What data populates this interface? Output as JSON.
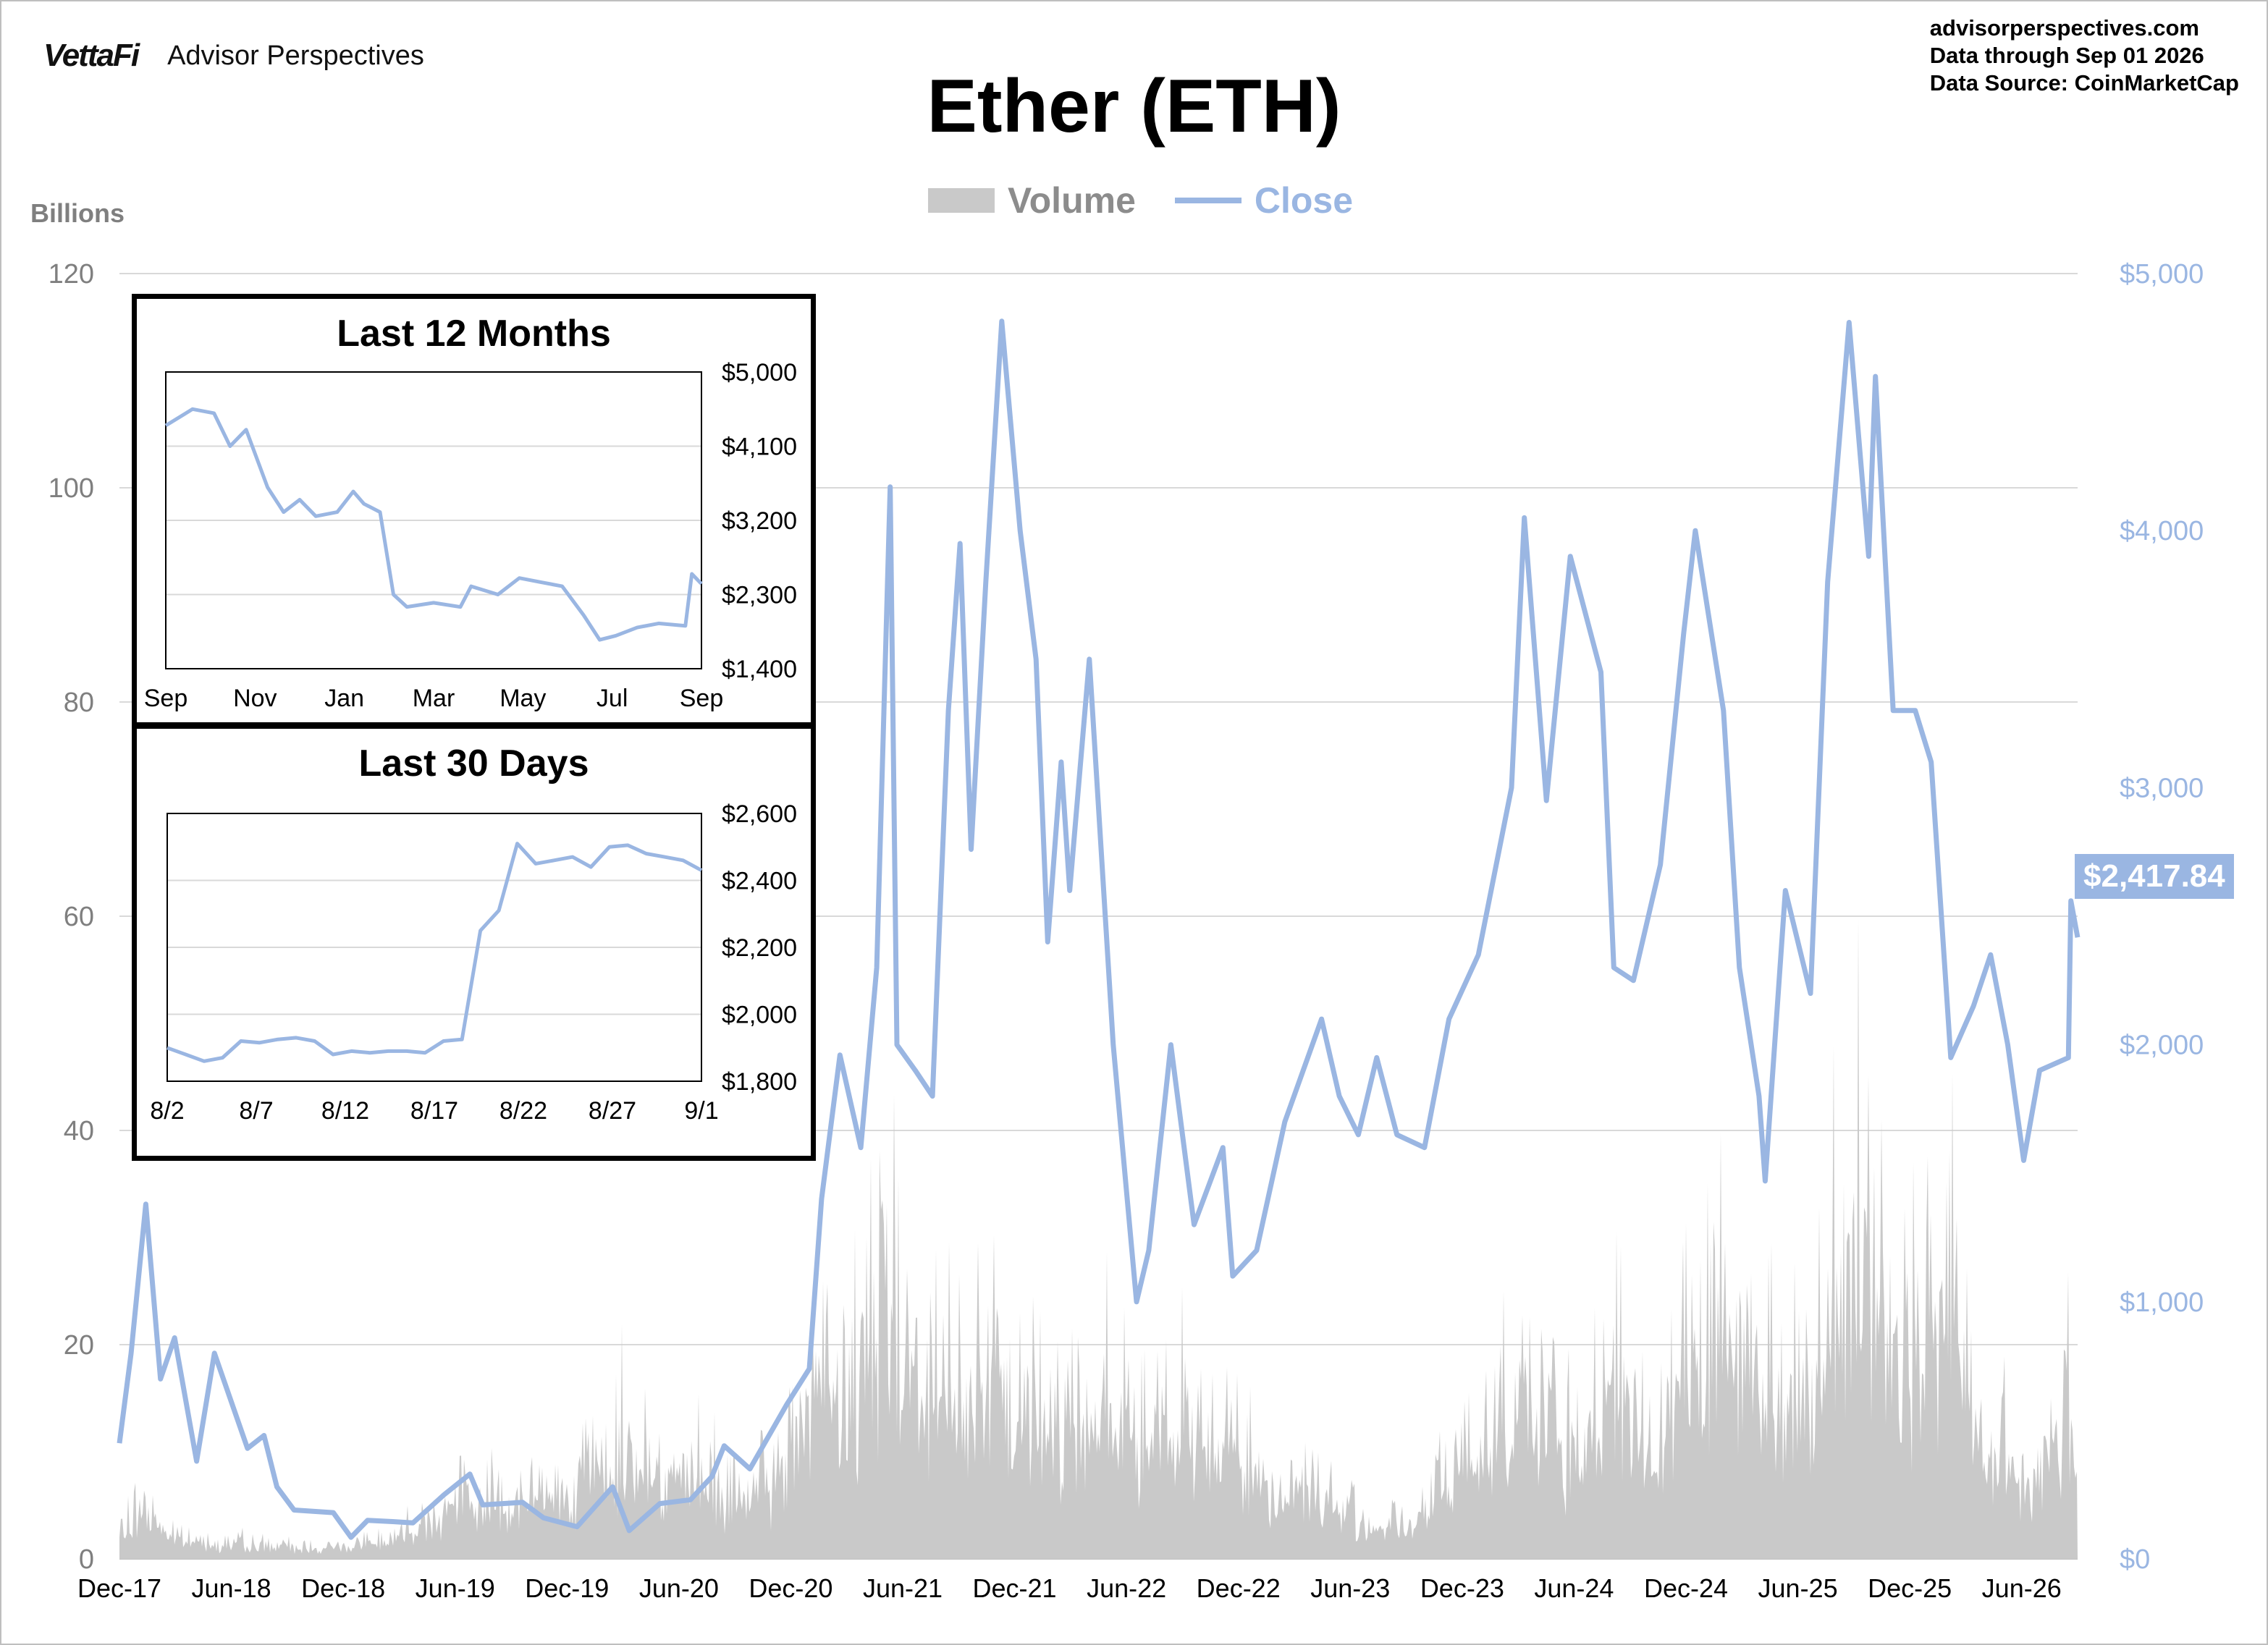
{
  "header": {
    "brand_logo": "VettaFi",
    "brand_name": "Advisor Perspectives",
    "site": "advisorperspectives.com",
    "data_through": "Data through  Sep 01 2026",
    "data_source": "Data Source:  CoinMarketCap"
  },
  "colors": {
    "volume": "#c9c9c9",
    "close": "#9ab6e2",
    "grid": "#d9d9d9",
    "axis_text": "#7f7f7f"
  },
  "last_price_label": "$2,417.84",
  "chart_data": [
    {
      "type": "area+line",
      "title": "Ether (ETH)",
      "legend": {
        "placement": "top-center",
        "entries": [
          "Volume",
          "Close"
        ]
      },
      "left_axis": {
        "units_label": "Billions",
        "ticks": [
          "0",
          "20",
          "40",
          "60",
          "80",
          "100",
          "120"
        ],
        "range": [
          0,
          120
        ]
      },
      "right_axis": {
        "ticks": [
          "$0",
          "$1,000",
          "$2,000",
          "$3,000",
          "$4,000",
          "$5,000"
        ],
        "range": [
          0,
          5000
        ]
      },
      "x_ticks": [
        "Dec-17",
        "Jun-18",
        "Dec-18",
        "Jun-19",
        "Dec-19",
        "Jun-20",
        "Dec-20",
        "Jun-21",
        "Dec-21",
        "Jun-22",
        "Dec-22",
        "Jun-23",
        "Dec-23",
        "Jun-24",
        "Dec-24",
        "Jun-25",
        "Dec-25",
        "Jun-26"
      ],
      "x_range": [
        "2017-12-01",
        "2026-09-01"
      ],
      "grid": true,
      "series": [
        {
          "name": "Close",
          "axis": "right",
          "points": [
            [
              "2017-12-01",
              450
            ],
            [
              "2017-12-20",
              800
            ],
            [
              "2018-01-13",
              1380
            ],
            [
              "2018-02-06",
              700
            ],
            [
              "2018-03-01",
              860
            ],
            [
              "2018-04-06",
              380
            ],
            [
              "2018-05-05",
              800
            ],
            [
              "2018-06-28",
              430
            ],
            [
              "2018-07-25",
              480
            ],
            [
              "2018-08-15",
              280
            ],
            [
              "2018-09-12",
              190
            ],
            [
              "2018-11-15",
              180
            ],
            [
              "2018-12-14",
              84
            ],
            [
              "2019-01-10",
              150
            ],
            [
              "2019-02-20",
              145
            ],
            [
              "2019-03-25",
              140
            ],
            [
              "2019-05-15",
              250
            ],
            [
              "2019-06-26",
              330
            ],
            [
              "2019-07-17",
              210
            ],
            [
              "2019-09-20",
              220
            ],
            [
              "2019-10-24",
              160
            ],
            [
              "2019-12-18",
              125
            ],
            [
              "2020-02-14",
              280
            ],
            [
              "2020-03-12",
              110
            ],
            [
              "2020-05-01",
              215
            ],
            [
              "2020-06-20",
              230
            ],
            [
              "2020-07-25",
              320
            ],
            [
              "2020-08-14",
              440
            ],
            [
              "2020-09-25",
              350
            ],
            [
              "2020-11-24",
              600
            ],
            [
              "2020-12-31",
              740
            ],
            [
              "2021-01-20",
              1400
            ],
            [
              "2021-02-19",
              1960
            ],
            [
              "2021-03-25",
              1600
            ],
            [
              "2021-04-20",
              2300
            ],
            [
              "2021-05-12",
              4170
            ],
            [
              "2021-05-23",
              2000
            ],
            [
              "2021-06-22",
              1900
            ],
            [
              "2021-07-20",
              1800
            ],
            [
              "2021-08-15",
              3300
            ],
            [
              "2021-09-03",
              3950
            ],
            [
              "2021-09-21",
              2760
            ],
            [
              "2021-10-15",
              3800
            ],
            [
              "2021-11-10",
              4815
            ],
            [
              "2021-12-10",
              4000
            ],
            [
              "2022-01-05",
              3500
            ],
            [
              "2022-01-24",
              2400
            ],
            [
              "2022-02-15",
              3100
            ],
            [
              "2022-03-01",
              2600
            ],
            [
              "2022-04-02",
              3500
            ],
            [
              "2022-05-11",
              2000
            ],
            [
              "2022-06-18",
              1000
            ],
            [
              "2022-07-08",
              1200
            ],
            [
              "2022-08-13",
              2000
            ],
            [
              "2022-09-20",
              1300
            ],
            [
              "2022-11-06",
              1600
            ],
            [
              "2022-11-22",
              1100
            ],
            [
              "2022-12-31",
              1200
            ],
            [
              "2023-02-15",
              1700
            ],
            [
              "2023-04-16",
              2100
            ],
            [
              "2023-05-15",
              1800
            ],
            [
              "2023-06-15",
              1650
            ],
            [
              "2023-07-15",
              1950
            ],
            [
              "2023-08-17",
              1650
            ],
            [
              "2023-10-01",
              1600
            ],
            [
              "2023-11-10",
              2100
            ],
            [
              "2023-12-28",
              2350
            ],
            [
              "2024-02-20",
              3000
            ],
            [
              "2024-03-12",
              4050
            ],
            [
              "2024-04-17",
              2950
            ],
            [
              "2024-05-26",
              3900
            ],
            [
              "2024-07-15",
              3450
            ],
            [
              "2024-08-05",
              2300
            ],
            [
              "2024-09-06",
              2250
            ],
            [
              "2024-10-20",
              2700
            ],
            [
              "2024-11-27",
              3600
            ],
            [
              "2024-12-16",
              4000
            ],
            [
              "2025-01-31",
              3300
            ],
            [
              "2025-02-26",
              2300
            ],
            [
              "2025-03-30",
              1800
            ],
            [
              "2025-04-09",
              1470
            ],
            [
              "2025-05-12",
              2600
            ],
            [
              "2025-06-22",
              2200
            ],
            [
              "2025-07-20",
              3800
            ],
            [
              "2025-08-24",
              4810
            ],
            [
              "2025-09-25",
              3900
            ],
            [
              "2025-10-06",
              4600
            ],
            [
              "2025-11-04",
              3300
            ],
            [
              "2025-12-10",
              3300
            ],
            [
              "2026-01-05",
              3100
            ],
            [
              "2026-02-06",
              1950
            ],
            [
              "2026-03-15",
              2150
            ],
            [
              "2026-04-12",
              2350
            ],
            [
              "2026-05-10",
              2000
            ],
            [
              "2026-06-05",
              1550
            ],
            [
              "2026-07-01",
              1900
            ],
            [
              "2026-08-17",
              1950
            ],
            [
              "2026-08-21",
              2560
            ],
            [
              "2026-09-01",
              2417.84
            ]
          ]
        },
        {
          "name": "Volume",
          "axis": "left",
          "points": [
            [
              "2017-12-01",
              3
            ],
            [
              "2018-01-10",
              7
            ],
            [
              "2018-03-01",
              2.5
            ],
            [
              "2018-06-01",
              2
            ],
            [
              "2018-09-01",
              1.5
            ],
            [
              "2018-12-01",
              1.5
            ],
            [
              "2019-03-01",
              3
            ],
            [
              "2019-06-15",
              8
            ],
            [
              "2019-09-01",
              7
            ],
            [
              "2019-12-01",
              9
            ],
            [
              "2020-03-01",
              14
            ],
            [
              "2020-05-01",
              12
            ],
            [
              "2020-08-15",
              8
            ],
            [
              "2020-11-01",
              9
            ],
            [
              "2021-01-15",
              25
            ],
            [
              "2021-03-01",
              18
            ],
            [
              "2021-05-15",
              38
            ],
            [
              "2021-07-01",
              20
            ],
            [
              "2021-09-01",
              22
            ],
            [
              "2021-11-01",
              22
            ],
            [
              "2022-01-15",
              18
            ],
            [
              "2022-05-15",
              20
            ],
            [
              "2022-07-01",
              15
            ],
            [
              "2022-09-15",
              16
            ],
            [
              "2022-11-10",
              18
            ],
            [
              "2023-01-15",
              8
            ],
            [
              "2023-03-15",
              10
            ],
            [
              "2023-06-15",
              5
            ],
            [
              "2023-09-15",
              4
            ],
            [
              "2023-12-01",
              13
            ],
            [
              "2024-03-10",
              23
            ],
            [
              "2024-06-01",
              12
            ],
            [
              "2024-08-05",
              24
            ],
            [
              "2024-10-01",
              14
            ],
            [
              "2024-12-10",
              30
            ],
            [
              "2025-02-10",
              28
            ],
            [
              "2025-04-10",
              24
            ],
            [
              "2025-06-15",
              20
            ],
            [
              "2025-08-15",
              45
            ],
            [
              "2025-10-10",
              33
            ],
            [
              "2025-12-01",
              28
            ],
            [
              "2026-02-05",
              35
            ],
            [
              "2026-04-01",
              14
            ],
            [
              "2026-06-15",
              10
            ],
            [
              "2026-08-21",
              22
            ],
            [
              "2026-09-01",
              12
            ]
          ]
        }
      ]
    },
    {
      "type": "line",
      "title": "Last 12 Months",
      "x_ticks": [
        "Sep",
        "Nov",
        "Jan",
        "Mar",
        "May",
        "Jul",
        "Sep"
      ],
      "y_ticks": [
        "$5,000",
        "$4,100",
        "$3,200",
        "$2,300",
        "$1,400"
      ],
      "ylim": [
        1400,
        5000
      ],
      "series": [
        {
          "name": "Close",
          "points": [
            [
              0.0,
              4350
            ],
            [
              0.05,
              4550
            ],
            [
              0.09,
              4500
            ],
            [
              0.12,
              4100
            ],
            [
              0.15,
              4300
            ],
            [
              0.19,
              3600
            ],
            [
              0.22,
              3300
            ],
            [
              0.25,
              3450
            ],
            [
              0.28,
              3250
            ],
            [
              0.32,
              3300
            ],
            [
              0.35,
              3550
            ],
            [
              0.37,
              3400
            ],
            [
              0.4,
              3300
            ],
            [
              0.425,
              2300
            ],
            [
              0.45,
              2150
            ],
            [
              0.5,
              2200
            ],
            [
              0.55,
              2150
            ],
            [
              0.57,
              2400
            ],
            [
              0.62,
              2300
            ],
            [
              0.66,
              2500
            ],
            [
              0.7,
              2450
            ],
            [
              0.74,
              2400
            ],
            [
              0.78,
              2050
            ],
            [
              0.81,
              1750
            ],
            [
              0.84,
              1800
            ],
            [
              0.88,
              1900
            ],
            [
              0.92,
              1950
            ],
            [
              0.97,
              1920
            ],
            [
              0.982,
              2550
            ],
            [
              1.0,
              2430
            ]
          ]
        }
      ]
    },
    {
      "type": "line",
      "title": "Last 30 Days",
      "categories": [
        "8/2",
        "8/7",
        "8/12",
        "8/17",
        "8/22",
        "8/27",
        "9/1"
      ],
      "y_ticks": [
        "$2,600",
        "$2,400",
        "$2,200",
        "$2,000",
        "$1,800"
      ],
      "ylim": [
        1800,
        2600
      ],
      "series": [
        {
          "name": "Close",
          "points": [
            [
              1,
              1900
            ],
            [
              2,
              1880
            ],
            [
              3,
              1860
            ],
            [
              4,
              1870
            ],
            [
              5,
              1920
            ],
            [
              6,
              1915
            ],
            [
              7,
              1925
            ],
            [
              8,
              1930
            ],
            [
              9,
              1920
            ],
            [
              10,
              1880
            ],
            [
              11,
              1890
            ],
            [
              12,
              1885
            ],
            [
              13,
              1890
            ],
            [
              14,
              1890
            ],
            [
              15,
              1885
            ],
            [
              16,
              1920
            ],
            [
              17,
              1925
            ],
            [
              18,
              2250
            ],
            [
              19,
              2310
            ],
            [
              20,
              2510
            ],
            [
              21,
              2450
            ],
            [
              22,
              2460
            ],
            [
              23,
              2470
            ],
            [
              24,
              2440
            ],
            [
              25,
              2500
            ],
            [
              26,
              2505
            ],
            [
              27,
              2480
            ],
            [
              28,
              2470
            ],
            [
              29,
              2460
            ],
            [
              30,
              2430
            ]
          ]
        }
      ]
    }
  ]
}
